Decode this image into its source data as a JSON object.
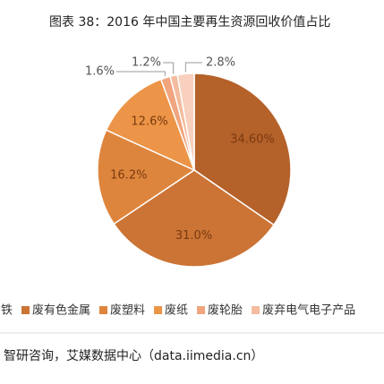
{
  "chart_data": {
    "type": "pie",
    "title": "图表 38：2016 年中国主要再生资源回收价值占比",
    "categories": [
      "铁",
      "废有色金属",
      "废塑料",
      "废纸",
      "废轮胎",
      "废弃电气电子产品",
      null
    ],
    "values": [
      34.6,
      31.0,
      16.2,
      12.6,
      1.6,
      1.2,
      2.8
    ],
    "value_labels": [
      "34.60%",
      "31.0%",
      "16.2%",
      "12.6%",
      "1.6%",
      "1.2%",
      "2.8%"
    ],
    "colors": [
      "#b4612a",
      "#cb7435",
      "#de853d",
      "#ec9447",
      "#f0a57e",
      "#f4bb9e",
      "#f8d0bd"
    ],
    "source": "智研咨询，艾媒数据中心（data.iimedia.cn）"
  }
}
